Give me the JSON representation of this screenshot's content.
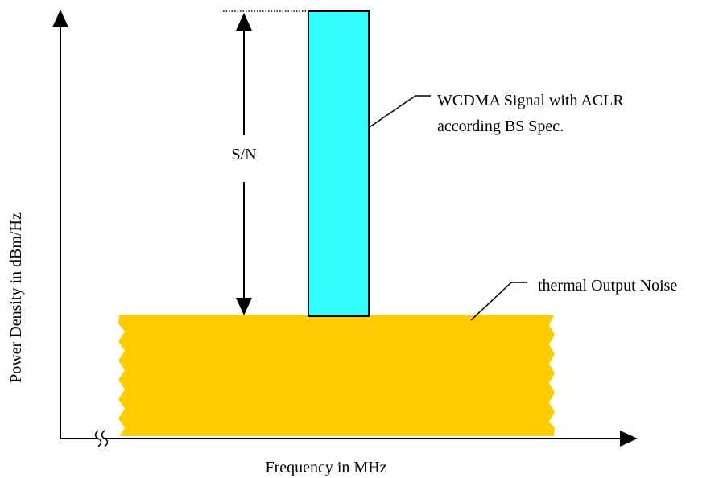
{
  "labels": {
    "y_axis": "Power Density in dBm/Hz",
    "x_axis": "Frequency in MHz",
    "snr": "S/N",
    "signal_line1": "WCDMA Signal with ACLR",
    "signal_line2": "according BS Spec.",
    "noise": "thermal Output Noise"
  },
  "colors": {
    "signal": "#33ffff",
    "noise": "#ffcc00",
    "stroke": "#000000"
  }
}
